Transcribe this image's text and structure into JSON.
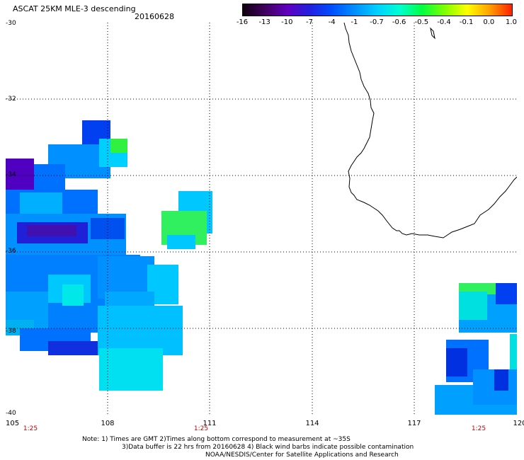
{
  "header": {
    "title": "ASCAT 25KM MLE-3 descending",
    "date": "20160628"
  },
  "colorbar": {
    "ticks": [
      "-16",
      "-13",
      "-10",
      "-7",
      "-4",
      "-1",
      "-0.7",
      "-0.6",
      "-0.5",
      "-0.4",
      "-0.1",
      "0.0",
      "1.0"
    ]
  },
  "axes": {
    "y_labels": [
      "-30",
      "-32",
      "-34",
      "-36",
      "-38",
      "-40"
    ],
    "x_labels": [
      "105",
      "108",
      "111",
      "114",
      "117",
      "120"
    ]
  },
  "times": [
    "1:25",
    "1:25",
    "1:25"
  ],
  "notes": {
    "line1": "Note: 1) Times are GMT 2)Times along bottom correspond to measurement at ~35S",
    "line2": "3)Data buffer is 22 hrs from 20160628 4) Black wind barbs indicate possible contamination",
    "line3": "NOAA/NESDIS/Center for Satellite Applications and Research"
  },
  "colors": {
    "colorbar_gradient": [
      "#100010",
      "#400060",
      "#6000c0",
      "#2020e0",
      "#0050ff",
      "#0090ff",
      "#00d0ff",
      "#00ffd0",
      "#00ff40",
      "#80ff00",
      "#ffff00",
      "#ffa000",
      "#ff2000"
    ],
    "grid": "#000000",
    "coastline": "#000000",
    "time_label": "#c00000"
  }
}
